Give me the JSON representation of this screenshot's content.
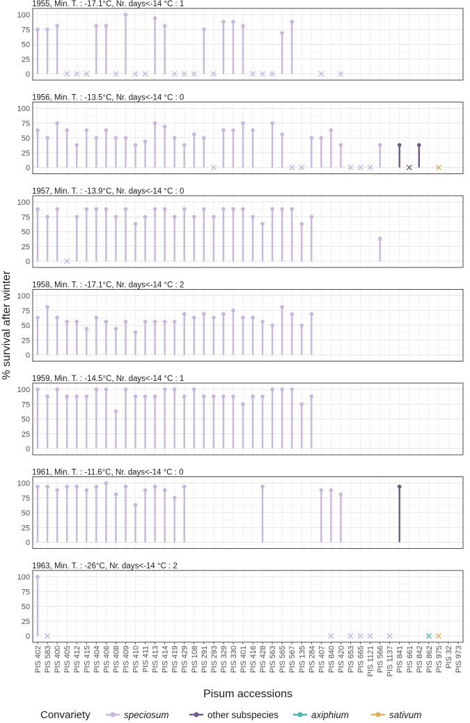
{
  "chart_data": {
    "type": "lollipop",
    "xlabel": "Pisum accessions",
    "ylabel": "% survival after winter",
    "ylim": [
      0,
      100
    ],
    "yticks": [
      0,
      25,
      50,
      75,
      100
    ],
    "grid": true,
    "legend_placement": "bottom",
    "legend": {
      "title": "Convariety",
      "entries": [
        {
          "key": "speciosum",
          "label": "speciosum",
          "italic": true,
          "color": "#c8b6e0"
        },
        {
          "key": "other",
          "label": "other subspecies",
          "italic": false,
          "color": "#6e5a8a"
        },
        {
          "key": "axiphium",
          "label": "axiphium",
          "italic": true,
          "color": "#4db6ac"
        },
        {
          "key": "sativum",
          "label": "sativum",
          "italic": true,
          "color": "#e0b05a"
        }
      ]
    },
    "categories": [
      "PIS 402",
      "PIS 583",
      "PIS 400",
      "PIS 405",
      "PIS 412",
      "PIS 415",
      "PIS 404",
      "PIS 406",
      "PIS 408",
      "PIS 409",
      "PIS 410",
      "PIS 411",
      "PIS 413",
      "PIS 414",
      "PIS 419",
      "PIS 429",
      "PIS 108",
      "PIS 291",
      "PIS 293",
      "PIS 329",
      "PIS 330",
      "PIS 401",
      "PIS 416",
      "PIS 428",
      "PIS 563",
      "PIS 565",
      "PIS 567",
      "PIS 135",
      "PIS 284",
      "PIS 407",
      "PIS 840",
      "PIS 420",
      "PIS 653",
      "PIS 665",
      "PIS 1121",
      "PIS 566",
      "PIS 1137",
      "PIS 841",
      "PIS 661",
      "PIS 842",
      "PIS 862",
      "PIS 975",
      "PIS 32",
      "PIS 973"
    ],
    "category_group": [
      "speciosum",
      "speciosum",
      "speciosum",
      "speciosum",
      "speciosum",
      "speciosum",
      "speciosum",
      "speciosum",
      "speciosum",
      "speciosum",
      "speciosum",
      "speciosum",
      "speciosum",
      "speciosum",
      "speciosum",
      "speciosum",
      "speciosum",
      "speciosum",
      "speciosum",
      "speciosum",
      "speciosum",
      "speciosum",
      "speciosum",
      "speciosum",
      "speciosum",
      "speciosum",
      "speciosum",
      "speciosum",
      "speciosum",
      "speciosum",
      "speciosum",
      "speciosum",
      "speciosum",
      "speciosum",
      "speciosum",
      "speciosum",
      "speciosum",
      "other",
      "other",
      "other",
      "axiphium",
      "sativum",
      "sativum",
      "sativum"
    ],
    "panels": [
      {
        "title": "1955, Min. T. : -17.1°C, Nr. days<-14 °C : 1",
        "values": [
          75,
          75,
          81,
          0,
          0,
          0,
          81,
          81,
          0,
          100,
          0,
          0,
          94,
          81,
          0,
          0,
          0,
          75,
          0,
          88,
          88,
          81,
          0,
          0,
          0,
          69,
          88,
          null,
          null,
          0,
          null,
          0,
          null,
          null,
          null,
          null,
          null,
          null,
          null,
          null,
          null,
          null,
          null,
          null
        ]
      },
      {
        "title": "1956, Min. T. : -13.5°C, Nr. days<-14 °C : 0",
        "values": [
          63,
          50,
          75,
          63,
          38,
          63,
          50,
          63,
          50,
          50,
          38,
          44,
          75,
          69,
          50,
          38,
          56,
          50,
          0,
          63,
          63,
          75,
          63,
          null,
          75,
          56,
          0,
          0,
          50,
          50,
          63,
          38,
          0,
          0,
          0,
          38,
          null,
          38,
          0,
          38,
          null,
          0,
          null,
          null
        ]
      },
      {
        "title": "1957, Min. T. : -13.9°C, Nr. days<-14 °C : 0",
        "values": [
          88,
          75,
          88,
          0,
          75,
          88,
          88,
          88,
          75,
          88,
          63,
          75,
          88,
          88,
          75,
          88,
          75,
          88,
          75,
          88,
          88,
          88,
          75,
          63,
          88,
          88,
          88,
          63,
          75,
          null,
          null,
          null,
          null,
          null,
          null,
          38,
          null,
          null,
          null,
          null,
          null,
          null,
          null,
          null
        ]
      },
      {
        "title": "1958, Min. T. : -17.1°C, Nr. days<-14 °C : 2",
        "values": [
          63,
          81,
          63,
          56,
          56,
          44,
          63,
          56,
          44,
          56,
          38,
          56,
          56,
          56,
          56,
          69,
          63,
          69,
          63,
          69,
          75,
          63,
          63,
          56,
          50,
          81,
          69,
          50,
          69,
          null,
          null,
          null,
          null,
          null,
          null,
          null,
          null,
          null,
          null,
          null,
          null,
          null,
          null,
          null
        ]
      },
      {
        "title": "1959, Min. T. : -14.5°C, Nr. days<-14 °C : 1",
        "values": [
          100,
          88,
          100,
          88,
          88,
          88,
          100,
          100,
          63,
          100,
          88,
          88,
          88,
          100,
          100,
          88,
          100,
          88,
          88,
          88,
          88,
          75,
          88,
          88,
          100,
          100,
          100,
          75,
          88,
          null,
          null,
          null,
          null,
          null,
          null,
          null,
          null,
          null,
          null,
          null,
          null,
          null,
          null,
          null
        ]
      },
      {
        "title": "1961, Min. T. : -11.6°C, Nr. days<-14 °C : 0",
        "values": [
          94,
          94,
          88,
          94,
          94,
          88,
          94,
          100,
          81,
          94,
          63,
          88,
          94,
          88,
          75,
          94,
          null,
          null,
          null,
          null,
          null,
          null,
          null,
          94,
          null,
          null,
          null,
          null,
          null,
          88,
          88,
          81,
          null,
          null,
          null,
          null,
          null,
          94,
          null,
          null,
          null,
          null,
          null,
          null
        ]
      },
      {
        "title": "1963, Min. T. : -26°C, Nr. days<-14 °C : 2",
        "values": [
          100,
          0,
          null,
          null,
          null,
          null,
          null,
          null,
          null,
          null,
          null,
          null,
          null,
          null,
          null,
          null,
          null,
          null,
          null,
          null,
          null,
          null,
          null,
          null,
          null,
          null,
          null,
          null,
          null,
          null,
          0,
          null,
          0,
          0,
          0,
          null,
          0,
          null,
          null,
          null,
          0,
          0,
          null,
          null
        ]
      }
    ]
  }
}
